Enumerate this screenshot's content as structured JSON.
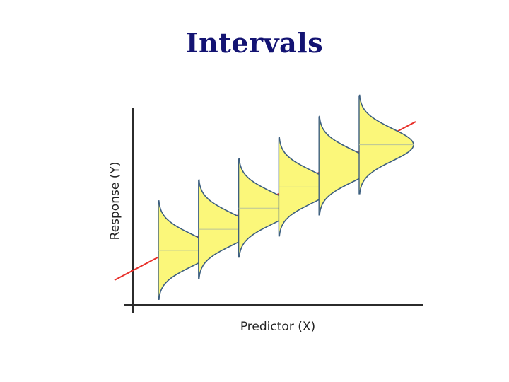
{
  "title": "Intervals",
  "diagram": {
    "x_axis_label": "Predictor (X)",
    "y_axis_label": "Response (Y)",
    "colors": {
      "axis": "#2b2b2b",
      "regression_line": "#e8302a",
      "curve_fill": "#fbf77a",
      "curve_stroke": "#3d5f80",
      "mean_line": "#b9c39a"
    },
    "distribution_count": 6
  }
}
